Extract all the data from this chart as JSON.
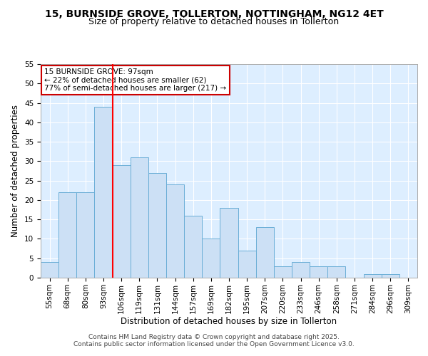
{
  "title": "15, BURNSIDE GROVE, TOLLERTON, NOTTINGHAM, NG12 4ET",
  "subtitle": "Size of property relative to detached houses in Tollerton",
  "xlabel": "Distribution of detached houses by size in Tollerton",
  "ylabel": "Number of detached properties",
  "categories": [
    "55sqm",
    "68sqm",
    "80sqm",
    "93sqm",
    "106sqm",
    "119sqm",
    "131sqm",
    "144sqm",
    "157sqm",
    "169sqm",
    "182sqm",
    "195sqm",
    "207sqm",
    "220sqm",
    "233sqm",
    "246sqm",
    "258sqm",
    "271sqm",
    "284sqm",
    "296sqm",
    "309sqm"
  ],
  "values": [
    4,
    22,
    22,
    44,
    29,
    31,
    27,
    24,
    16,
    10,
    18,
    7,
    13,
    3,
    4,
    3,
    3,
    0,
    1,
    1,
    0
  ],
  "bar_color": "#cce0f5",
  "bar_edge_color": "#6aaed6",
  "red_line_index": 3.5,
  "annotation_text_line1": "15 BURNSIDE GROVE: 97sqm",
  "annotation_text_line2": "← 22% of detached houses are smaller (62)",
  "annotation_text_line3": "77% of semi-detached houses are larger (217) →",
  "annotation_box_color": "#ffffff",
  "annotation_box_edge": "#cc0000",
  "ylim": [
    0,
    55
  ],
  "yticks": [
    0,
    5,
    10,
    15,
    20,
    25,
    30,
    35,
    40,
    45,
    50,
    55
  ],
  "footer_line1": "Contains HM Land Registry data © Crown copyright and database right 2025.",
  "footer_line2": "Contains public sector information licensed under the Open Government Licence v3.0.",
  "fig_bg_color": "#ffffff",
  "plot_bg_color": "#ddeeff",
  "grid_color": "#ffffff",
  "title_fontsize": 10,
  "subtitle_fontsize": 9,
  "axis_label_fontsize": 8.5,
  "tick_fontsize": 7.5,
  "annotation_fontsize": 7.5,
  "footer_fontsize": 6.5
}
